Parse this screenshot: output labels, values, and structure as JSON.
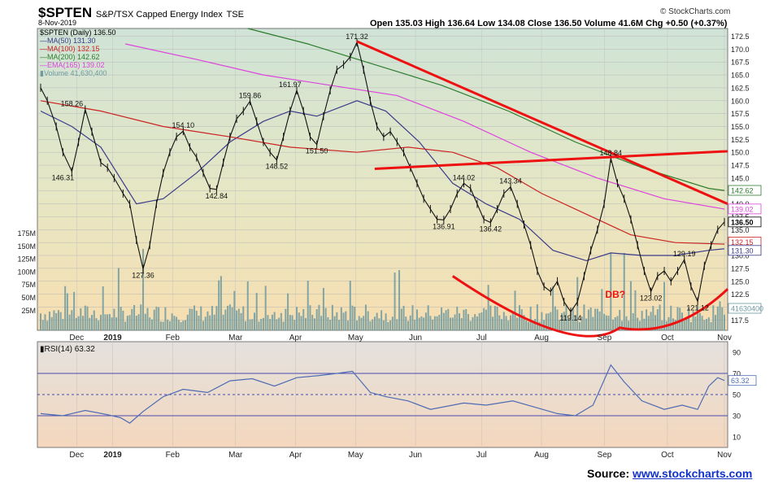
{
  "header": {
    "symbol": "$SPTEN",
    "name": "S&P/TSX Capped Energy Index",
    "exchange": "TSE",
    "date": "8-Nov-2019",
    "quote": "Open 135.03  High 136.64  Low 134.08  Close 136.50  Volume 41.6M  Chg +0.50 (+0.37%)",
    "brand": "© StockCharts.com"
  },
  "source": {
    "label": "Source:",
    "link": "www.stockcharts.com"
  },
  "chart_data": [
    {
      "type": "line",
      "title": "$SPTEN (Daily) 136.50",
      "x_labels": [
        "Dec",
        "2019",
        "Feb",
        "Mar",
        "Apr",
        "May",
        "Jun",
        "Jul",
        "Aug",
        "Sep",
        "Oct",
        "Nov"
      ],
      "y_ticks": [
        117.5,
        120,
        122.5,
        125,
        127.5,
        130,
        132.5,
        135,
        137.5,
        140,
        142.5,
        145,
        147.5,
        150,
        152.5,
        155,
        157.5,
        160,
        162.5,
        165,
        167.5,
        170,
        172.5
      ],
      "ylim": [
        115.5,
        174
      ],
      "volume_ticks": [
        "175M",
        "150M",
        "125M",
        "100M",
        "75M",
        "50M",
        "25M"
      ],
      "legend": [
        {
          "label": "$SPTEN (Daily) 136.50",
          "color": "#000000"
        },
        {
          "label": "MA(50) 131.30",
          "color": "#3b3b8a"
        },
        {
          "label": "MA(100) 132.15",
          "color": "#cc2222"
        },
        {
          "label": "MA(200) 142.62",
          "color": "#2e7d2e"
        },
        {
          "label": "EMA(165) 139.02",
          "color": "#dd44dd"
        },
        {
          "label": "Volume 41,630,400",
          "color": "#6f9aa0"
        }
      ],
      "series": [
        {
          "name": "$SPTEN (Daily)",
          "points": [
            [
              0,
              162.5
            ],
            [
              3,
              160
            ],
            [
              7,
              155
            ],
            [
              10,
              150
            ],
            [
              14,
              146.3
            ],
            [
              17,
              152
            ],
            [
              20,
              158.3
            ],
            [
              23,
              154
            ],
            [
              27,
              148
            ],
            [
              30,
              147
            ],
            [
              33,
              145
            ],
            [
              37,
              142
            ],
            [
              40,
              140
            ],
            [
              43,
              133
            ],
            [
              46,
              127.4
            ],
            [
              49,
              132
            ],
            [
              52,
              140
            ],
            [
              55,
              146
            ],
            [
              58,
              150
            ],
            [
              61,
              153
            ],
            [
              64,
              154.1
            ],
            [
              67,
              151
            ],
            [
              70,
              149
            ],
            [
              73,
              146
            ],
            [
              76,
              143
            ],
            [
              79,
              142.8
            ],
            [
              82,
              148
            ],
            [
              85,
              153
            ],
            [
              88,
              156.5
            ],
            [
              91,
              158
            ],
            [
              94,
              159.9
            ],
            [
              97,
              156
            ],
            [
              100,
              152
            ],
            [
              103,
              150
            ],
            [
              106,
              148.5
            ],
            [
              109,
              153
            ],
            [
              112,
              158
            ],
            [
              115,
              162
            ],
            [
              118,
              158
            ],
            [
              121,
              153
            ],
            [
              124,
              151.5
            ],
            [
              127,
              157
            ],
            [
              130,
              162
            ],
            [
              133,
              166
            ],
            [
              136,
              167
            ],
            [
              139,
              168.5
            ],
            [
              142,
              171.3
            ],
            [
              145,
              166
            ],
            [
              148,
              160
            ],
            [
              151,
              155
            ],
            [
              154,
              153
            ],
            [
              157,
              154
            ],
            [
              160,
              152
            ],
            [
              163,
              150
            ],
            [
              166,
              147
            ],
            [
              169,
              144
            ],
            [
              172,
              141
            ],
            [
              175,
              139
            ],
            [
              178,
              137
            ],
            [
              181,
              136.9
            ],
            [
              184,
              139
            ],
            [
              187,
              142
            ],
            [
              190,
              144
            ],
            [
              193,
              143
            ],
            [
              196,
              140
            ],
            [
              199,
              137
            ],
            [
              202,
              136.4
            ],
            [
              205,
              139
            ],
            [
              208,
              142
            ],
            [
              211,
              143.3
            ],
            [
              214,
              140
            ],
            [
              217,
              136
            ],
            [
              220,
              132
            ],
            [
              223,
              127
            ],
            [
              226,
              124
            ],
            [
              229,
              123
            ],
            [
              232,
              125
            ],
            [
              235,
              121
            ],
            [
              238,
              119.1
            ],
            [
              241,
              121
            ],
            [
              244,
              126
            ],
            [
              247,
              131
            ],
            [
              250,
              135
            ],
            [
              253,
              140
            ],
            [
              256,
              148.8
            ],
            [
              259,
              144
            ],
            [
              262,
              141
            ],
            [
              265,
              137
            ],
            [
              268,
              132
            ],
            [
              271,
              127
            ],
            [
              274,
              123
            ],
            [
              277,
              126
            ],
            [
              280,
              127
            ],
            [
              283,
              125
            ],
            [
              286,
              127
            ],
            [
              289,
              129.2
            ],
            [
              292,
              124
            ],
            [
              295,
              121.1
            ],
            [
              298,
              128
            ],
            [
              301,
              132
            ],
            [
              304,
              135
            ],
            [
              307,
              136.5
            ]
          ]
        },
        {
          "name": "MA(50)",
          "points": [
            [
              0,
              158
            ],
            [
              14,
              155
            ],
            [
              27,
              151
            ],
            [
              43,
              140
            ],
            [
              55,
              141
            ],
            [
              70,
              146
            ],
            [
              85,
              152
            ],
            [
              100,
              156
            ],
            [
              112,
              158
            ],
            [
              124,
              157
            ],
            [
              142,
              160
            ],
            [
              155,
              158
            ],
            [
              170,
              152
            ],
            [
              185,
              144
            ],
            [
              200,
              140
            ],
            [
              215,
              137
            ],
            [
              230,
              131
            ],
            [
              245,
              129
            ],
            [
              256,
              130.5
            ],
            [
              270,
              130
            ],
            [
              285,
              130
            ],
            [
              300,
              131
            ],
            [
              307,
              131.3
            ]
          ]
        },
        {
          "name": "MA(100)",
          "points": [
            [
              0,
              160
            ],
            [
              27,
              158
            ],
            [
              55,
              155
            ],
            [
              85,
              153
            ],
            [
              112,
              151
            ],
            [
              142,
              150
            ],
            [
              165,
              151
            ],
            [
              185,
              150
            ],
            [
              205,
              147
            ],
            [
              225,
              142
            ],
            [
              245,
              138
            ],
            [
              265,
              134
            ],
            [
              285,
              132.5
            ],
            [
              307,
              132.2
            ]
          ]
        },
        {
          "name": "MA(200)",
          "points": [
            [
              93,
              174
            ],
            [
              120,
              171
            ],
            [
              150,
              167
            ],
            [
              180,
              163
            ],
            [
              210,
              158
            ],
            [
              240,
              152
            ],
            [
              270,
              147
            ],
            [
              300,
              143
            ],
            [
              307,
              142.6
            ]
          ]
        },
        {
          "name": "EMA(165)",
          "points": [
            [
              38,
              171
            ],
            [
              70,
              168
            ],
            [
              100,
              165
            ],
            [
              130,
              163
            ],
            [
              160,
              161
            ],
            [
              190,
              156
            ],
            [
              220,
              150
            ],
            [
              250,
              145
            ],
            [
              280,
              141
            ],
            [
              307,
              139
            ]
          ]
        }
      ],
      "annotations": [
        "158.26",
        "146.31",
        "127.36",
        "154.10",
        "142.84",
        "159.86",
        "148.52",
        "161.97",
        "151.50",
        "171.32",
        "144.02",
        "136.91",
        "143.34",
        "136.42",
        "119.14",
        "148.84",
        "123.02",
        "129.19",
        "121.12",
        "DB?"
      ],
      "price_tags": [
        {
          "label": "142.62",
          "color": "#2e7d2e",
          "value": 142.62
        },
        {
          "label": "139.02",
          "color": "#dd44dd",
          "value": 139.02
        },
        {
          "label": "136.50",
          "color": "#000000",
          "value": 136.5
        },
        {
          "label": "132.15",
          "color": "#cc2222",
          "value": 132.15
        },
        {
          "label": "131.30",
          "color": "#3b3b8a",
          "value": 131.3
        },
        {
          "label": "41630400",
          "color": "#6f9aa0",
          "value": 41630400
        }
      ]
    },
    {
      "type": "line",
      "title": "RSI(14) 63.32",
      "y_ticks": [
        10,
        30,
        50,
        70,
        90
      ],
      "ylim": [
        0,
        100
      ],
      "reference_lines": [
        30,
        50,
        70
      ],
      "current": "63.32",
      "series": [
        {
          "name": "RSI(14)",
          "points": [
            [
              0,
              32
            ],
            [
              10,
              30
            ],
            [
              20,
              35
            ],
            [
              30,
              31
            ],
            [
              36,
              28
            ],
            [
              40,
              23
            ],
            [
              46,
              34
            ],
            [
              55,
              48
            ],
            [
              64,
              55
            ],
            [
              75,
              52
            ],
            [
              85,
              63
            ],
            [
              95,
              65
            ],
            [
              105,
              58
            ],
            [
              115,
              66
            ],
            [
              125,
              68
            ],
            [
              133,
              70
            ],
            [
              140,
              72
            ],
            [
              148,
              52
            ],
            [
              155,
              48
            ],
            [
              165,
              44
            ],
            [
              175,
              36
            ],
            [
              190,
              42
            ],
            [
              200,
              40
            ],
            [
              212,
              44
            ],
            [
              222,
              38
            ],
            [
              232,
              32
            ],
            [
              240,
              30
            ],
            [
              248,
              40
            ],
            [
              256,
              78
            ],
            [
              262,
              62
            ],
            [
              270,
              44
            ],
            [
              280,
              36
            ],
            [
              288,
              40
            ],
            [
              295,
              36
            ],
            [
              300,
              58
            ],
            [
              304,
              66
            ],
            [
              307,
              63.3
            ]
          ]
        }
      ]
    }
  ],
  "colors": {
    "red_annotation": "#ee1111",
    "volume": "#6f9aa0",
    "rsi_line": "#4d6bb3",
    "ref_line": "#4a4ab0"
  }
}
